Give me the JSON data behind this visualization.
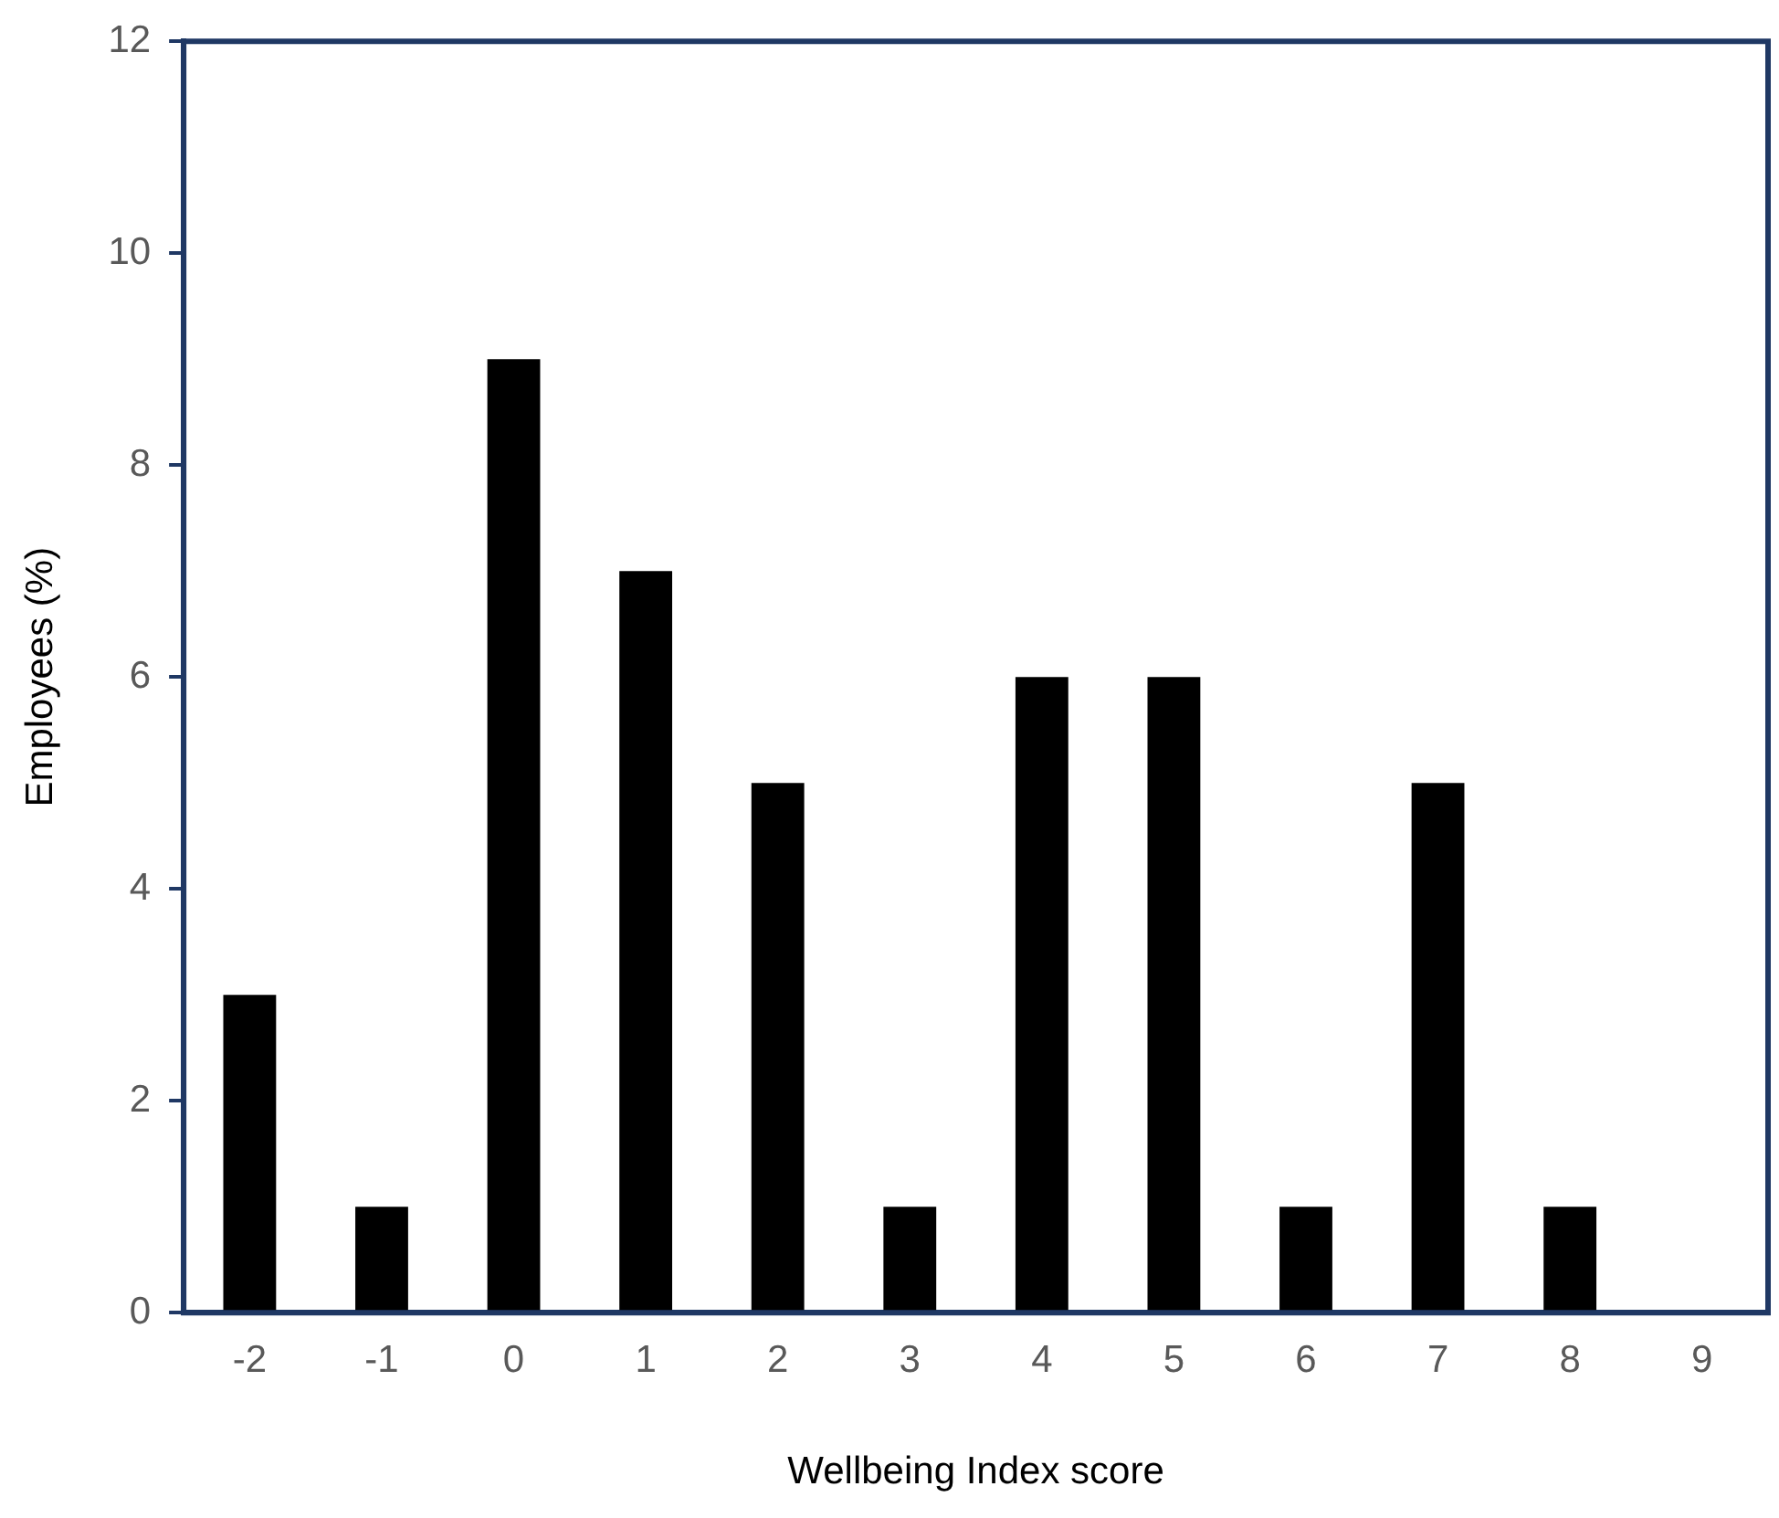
{
  "chart_data": {
    "type": "bar",
    "xlabel": "Wellbeing Index score",
    "ylabel": "Employees (%)",
    "categories": [
      "-2",
      "-1",
      "0",
      "1",
      "2",
      "3",
      "4",
      "5",
      "6",
      "7",
      "8",
      "9"
    ],
    "values": [
      3,
      1,
      9,
      7,
      5,
      1,
      6,
      6,
      1,
      5,
      1,
      0
    ],
    "color": "#000000",
    "ylim": [
      0,
      12
    ],
    "yticks": [
      0,
      2,
      4,
      6,
      8,
      10,
      12
    ],
    "grid": false,
    "legend": false
  }
}
